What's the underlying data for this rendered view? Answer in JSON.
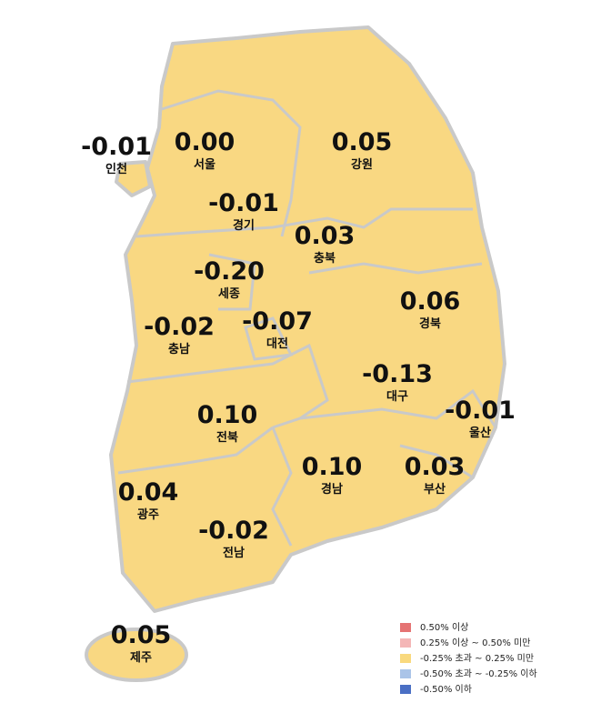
{
  "regions": [
    {
      "name": "인천",
      "value": "-0.01"
    },
    {
      "name": "서울",
      "value": "0.00"
    },
    {
      "name": "경기",
      "value": "-0.01"
    },
    {
      "name": "강원",
      "value": "0.05"
    },
    {
      "name": "충북",
      "value": "0.03"
    },
    {
      "name": "세종",
      "value": "-0.20"
    },
    {
      "name": "충남",
      "value": "-0.02"
    },
    {
      "name": "대전",
      "value": "-0.07"
    },
    {
      "name": "경북",
      "value": "0.06"
    },
    {
      "name": "대구",
      "value": "-0.13"
    },
    {
      "name": "울산",
      "value": "-0.01"
    },
    {
      "name": "전북",
      "value": "0.10"
    },
    {
      "name": "경남",
      "value": "0.10"
    },
    {
      "name": "부산",
      "value": "0.03"
    },
    {
      "name": "광주",
      "value": "0.04"
    },
    {
      "name": "전남",
      "value": "-0.02"
    },
    {
      "name": "제주",
      "value": "0.05"
    }
  ],
  "legend": [
    {
      "label": "0.50% 이상",
      "color": "#e57373"
    },
    {
      "label": "0.25% 이상 ~ 0.50% 미만",
      "color": "#f4b6b6"
    },
    {
      "label": "-0.25% 초과 ~ 0.25% 미만",
      "color": "#f9d97e"
    },
    {
      "label": "-0.50% 초과 ~ -0.25% 이하",
      "color": "#aac4e8"
    },
    {
      "label": "-0.50% 이하",
      "color": "#4a6fc4"
    }
  ]
}
